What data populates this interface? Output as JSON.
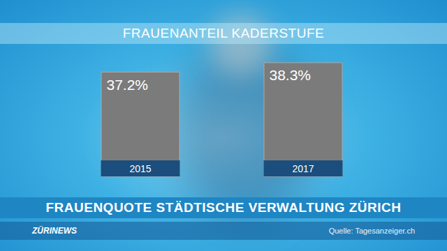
{
  "chart_data": {
    "type": "bar",
    "title": "FRAUENANTEIL KADERSTUFE",
    "subtitle": "FRAUENQUOTE STÄDTISCHE VERWALTUNG ZÜRICH",
    "annotations": [
      "ZÜRINEWS",
      "Quelle: Tagesanzeiger.ch"
    ],
    "categories": [
      "2015",
      "2017"
    ],
    "values": [
      37.2,
      38.3
    ],
    "value_labels": [
      "37.2%",
      "38.3%"
    ],
    "color": "#7b7b7b",
    "ylim": [
      25,
      40
    ],
    "yticks": [
      25,
      40
    ],
    "grid": false,
    "data_labels": true,
    "tick_labels": "x"
  }
}
